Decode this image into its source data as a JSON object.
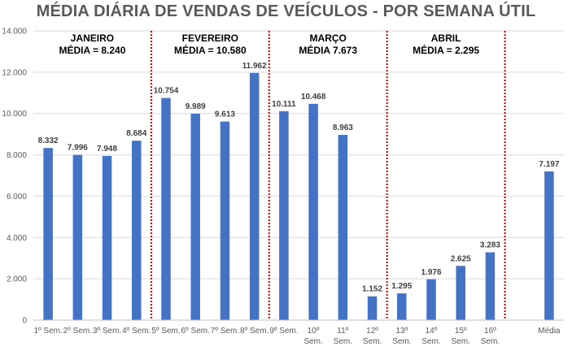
{
  "chart_data": {
    "type": "bar",
    "title": "MÉDIA DIÁRIA DE VENDAS DE VEÍCULOS - POR SEMANA ÚTIL",
    "categories": [
      [
        "1º Sem."
      ],
      [
        "2º Sem."
      ],
      [
        "3º Sem."
      ],
      [
        "4º Sem."
      ],
      [
        "5º Sem."
      ],
      [
        "6º Sem."
      ],
      [
        "7º Sem."
      ],
      [
        "8º Sem."
      ],
      [
        "9º Sem."
      ],
      [
        "10º",
        "Sem."
      ],
      [
        "11º",
        "Sem."
      ],
      [
        "12º",
        "Sem."
      ],
      [
        "13º",
        "Sem."
      ],
      [
        "14º",
        "Sem."
      ],
      [
        "15º",
        "Sem."
      ],
      [
        "16º",
        "Sem."
      ],
      [
        ""
      ],
      [
        "Média"
      ]
    ],
    "values": [
      8332,
      7996,
      7948,
      8684,
      10754,
      9989,
      9613,
      11962,
      10111,
      10468,
      8963,
      1152,
      1295,
      1976,
      2625,
      3283,
      null,
      7197
    ],
    "value_labels": [
      "8.332",
      "7.996",
      "7.948",
      "8.684",
      "10.754",
      "9.989",
      "9.613",
      "11.962",
      "10.111",
      "10.468",
      "8.963",
      "1.152",
      "1.295",
      "1.976",
      "2.625",
      "3.283",
      "",
      "7.197"
    ],
    "ylim": [
      0,
      14000
    ],
    "yticks": [
      0,
      2000,
      4000,
      6000,
      8000,
      10000,
      12000,
      14000
    ],
    "ytick_labels": [
      "0",
      "2.000",
      "4.000",
      "6.000",
      "8.000",
      "10.000",
      "12.000",
      "14.000"
    ],
    "grid": true,
    "bar_color": "#4472C4",
    "separator_color": "#C00000",
    "separators_after_index": [
      3,
      7,
      11,
      15
    ],
    "month_annotations": [
      {
        "line1": "JANEIRO",
        "line2": "MÉDIA = 8.240",
        "center_index": 1.5
      },
      {
        "line1": "FEVEREIRO",
        "line2": "MÉDIA = 10.580",
        "center_index": 5.5
      },
      {
        "line1": "MARÇO",
        "line2": "MÉDIA 7.673",
        "center_index": 9.5
      },
      {
        "line1": "ABRIL",
        "line2": "MÉDIA = 2.295",
        "center_index": 13.5
      }
    ]
  }
}
